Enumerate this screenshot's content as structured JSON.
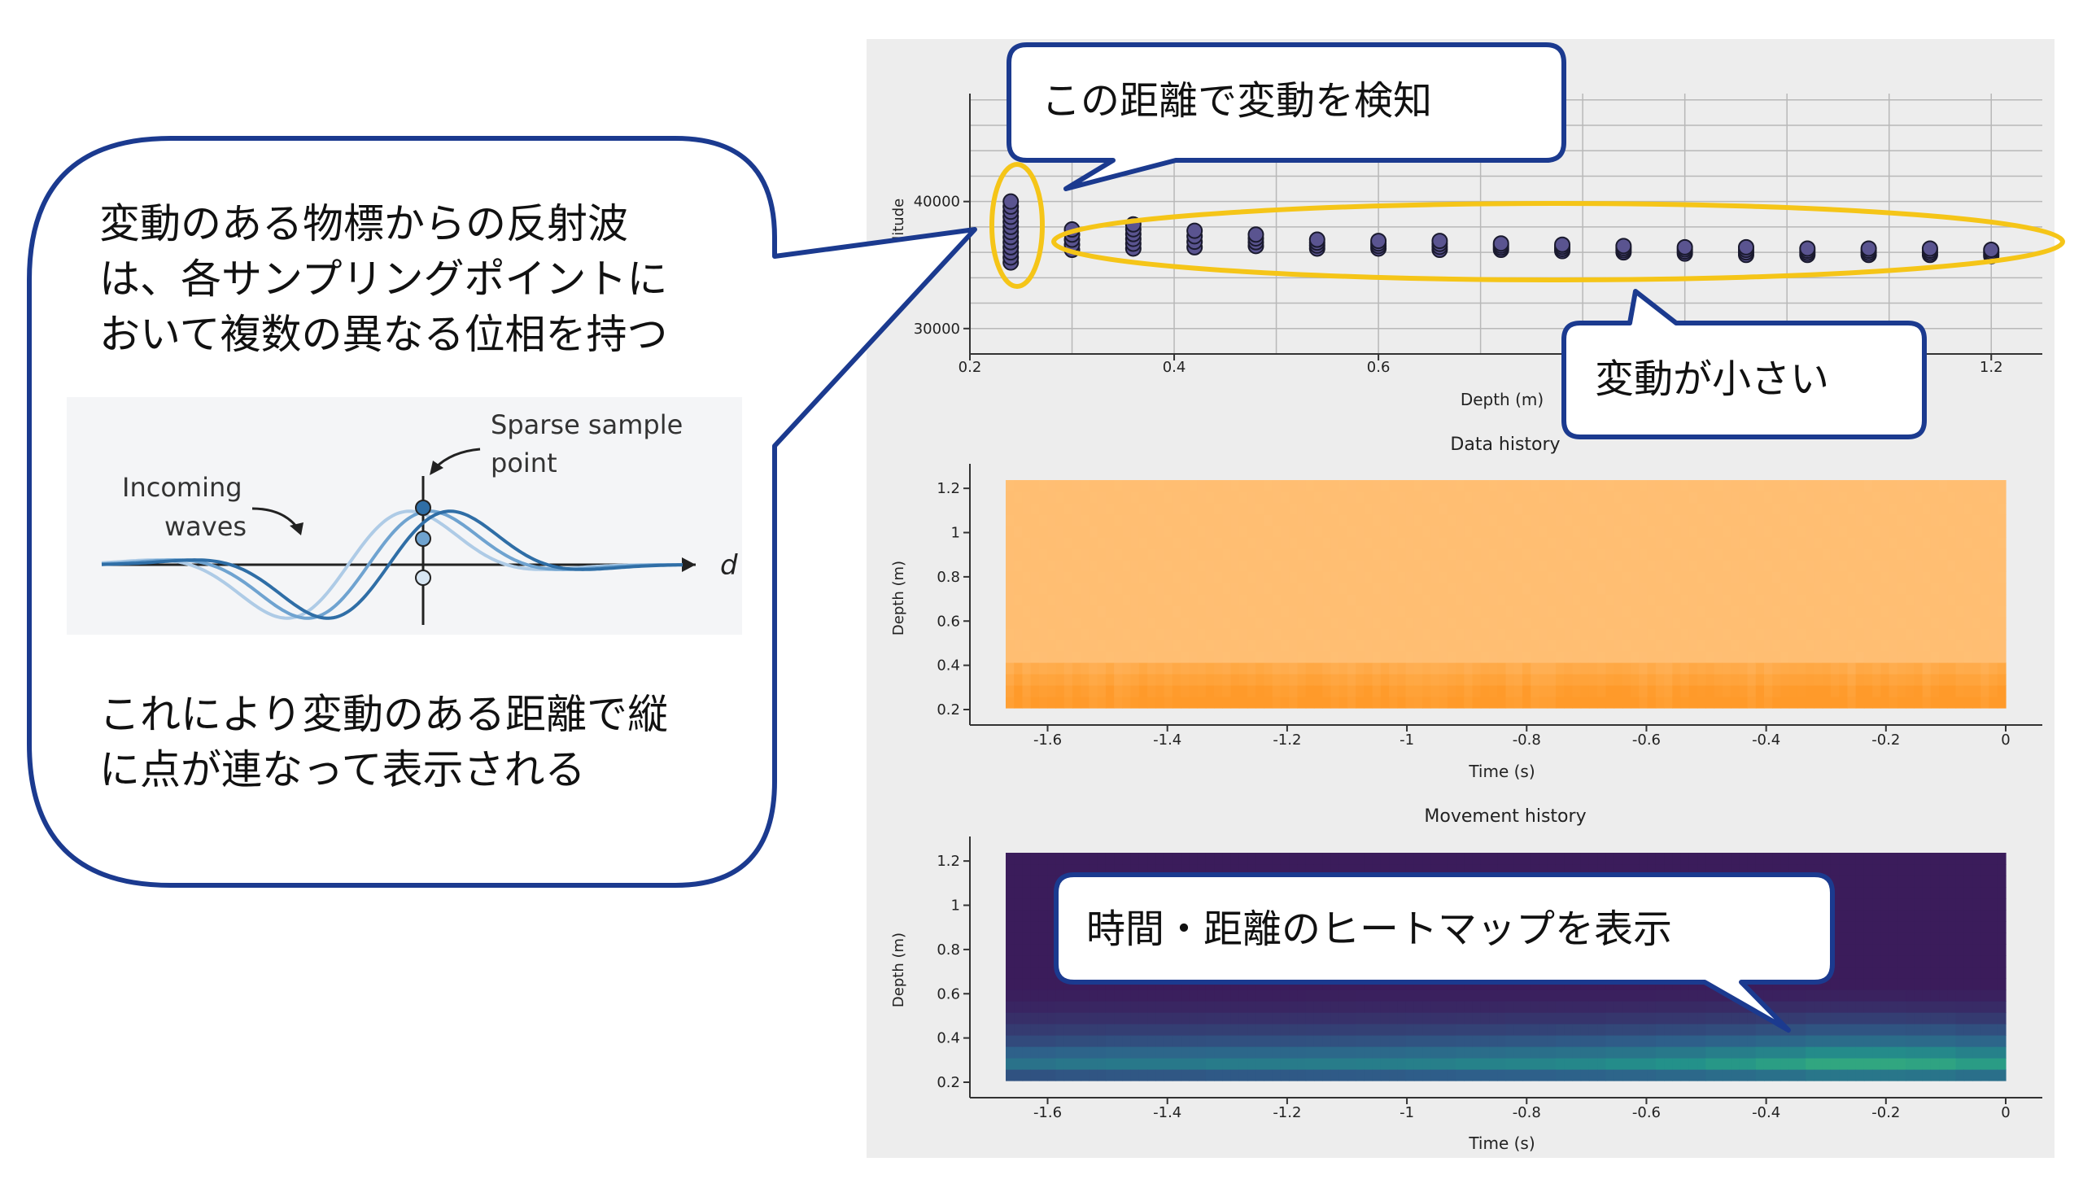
{
  "colors": {
    "bubble_border": "#1b3a8f",
    "highlight": "#f5c518",
    "panel_bg": "#ededed",
    "grid": "#b8b8b8",
    "marker_fill": "#5a5490",
    "marker_edge": "#1a1a2e",
    "wave_dark": "#2f6ea6",
    "wave_mid": "#6fa3d0",
    "wave_light": "#aecbe6"
  },
  "left_bubble": {
    "lines_top": [
      "変動のある物標からの反射波",
      "は、各サンプリングポイントに",
      "おいて複数の異なる位相を持つ"
    ],
    "lines_bottom": [
      "これにより変動のある距離で縦",
      "に点が連なって表示される"
    ]
  },
  "wave_diagram": {
    "incoming_line1": "Incoming",
    "incoming_line2": "waves",
    "sparse_line1": "Sparse sample",
    "sparse_line2": "point",
    "axis_label": "d"
  },
  "callouts": {
    "detect": "この距離で変動を検知",
    "small": "変動が小さい",
    "heatmap": "時間・距離のヒートマップを表示"
  },
  "chart_data": [
    {
      "type": "scatter",
      "title": "",
      "xlabel": "Depth (m)",
      "ylabel": "plitude",
      "xticks": [
        "0.2",
        "0.4",
        "0.6",
        "1.2"
      ],
      "yticks": [
        "30000",
        "40000"
      ],
      "xlim": [
        0.2,
        1.25
      ],
      "ylim": [
        28000,
        48500
      ],
      "series": [
        {
          "depth": [
            0.24,
            0.3,
            0.36,
            0.42,
            0.48,
            0.54,
            0.6,
            0.66,
            0.72,
            0.78,
            0.84,
            0.9,
            0.96,
            1.02,
            1.08,
            1.14,
            1.2
          ],
          "amplitude_min": [
            35200,
            36200,
            36300,
            36400,
            36500,
            36300,
            36300,
            36200,
            36200,
            36100,
            36000,
            35900,
            35800,
            35800,
            35800,
            35800,
            35700
          ],
          "amplitude_max": [
            40000,
            37800,
            38200,
            37700,
            37400,
            37000,
            36900,
            36900,
            36700,
            36600,
            36500,
            36400,
            36400,
            36300,
            36300,
            36300,
            36200
          ]
        }
      ]
    },
    {
      "type": "heatmap",
      "title": "Data history",
      "xlabel": "Time (s)",
      "ylabel": "Depth (m)",
      "xticks": [
        "-1.6",
        "-1.4",
        "-1.2",
        "-1",
        "-0.8",
        "-0.6",
        "-0.4",
        "-0.2",
        "0"
      ],
      "yticks": [
        "0.2",
        "0.4",
        "0.6",
        "0.8",
        "1",
        "1.2"
      ],
      "xlim": [
        -1.67,
        0
      ],
      "ylim": [
        0.2,
        1.23
      ],
      "depth_profile": [
        1.0,
        0.85,
        0.6,
        0.4,
        0.25,
        0.15,
        0.1,
        0.06,
        0.04,
        0.03,
        0.02,
        0.02,
        0.02,
        0.02,
        0.02,
        0.02,
        0.02,
        0.02,
        0.02,
        0.02
      ],
      "colormap": [
        "#ffc27a",
        "#ffb968",
        "#ffa640",
        "#ff9a2a"
      ]
    },
    {
      "type": "heatmap",
      "title": "Movement history",
      "xlabel": "Time (s)",
      "ylabel": "Depth (m)",
      "xticks": [
        "-1.6",
        "-1.4",
        "-1.2",
        "-1",
        "-0.8",
        "-0.6",
        "-0.4",
        "-0.2",
        "0"
      ],
      "yticks": [
        "0.2",
        "0.4",
        "0.6",
        "0.8",
        "1",
        "1.2"
      ],
      "xlim": [
        -1.67,
        0
      ],
      "ylim": [
        0.2,
        1.23
      ],
      "depth_profile": [
        0.35,
        0.6,
        0.45,
        0.3,
        0.2,
        0.12,
        0.06,
        0.02,
        0.0,
        0.0,
        0.0,
        0.0,
        0.0,
        0.0,
        0.0,
        0.0,
        0.0,
        0.0,
        0.0,
        0.0
      ],
      "time_gain": [
        0.55,
        0.58,
        0.6,
        0.6,
        0.62,
        0.62,
        0.63,
        0.64,
        0.66,
        0.68,
        0.7,
        0.72,
        0.76,
        0.8,
        0.86,
        0.92,
        1.0,
        1.0,
        0.97,
        0.9
      ],
      "colormap": [
        "#3b1c5b",
        "#2e5f8a",
        "#23908a",
        "#3dbb77",
        "#dff23a"
      ]
    }
  ]
}
